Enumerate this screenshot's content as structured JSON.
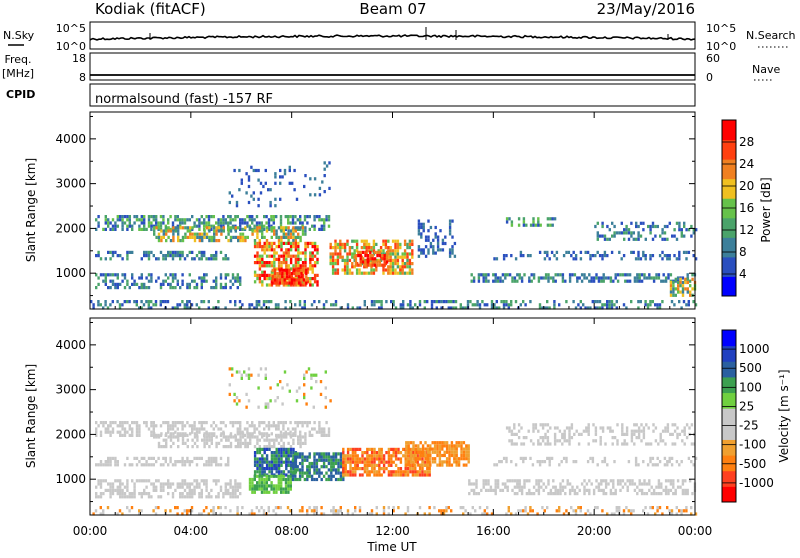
{
  "header": {
    "station": "Kodiak (fitACF)",
    "beam": "Beam 07",
    "date": "23/May/2016"
  },
  "top_panels": {
    "nsky": {
      "label": "N.Sky",
      "ticks": [
        "10^5",
        "10^0"
      ]
    },
    "nsearch": {
      "label": "N.Search",
      "ticks": [
        "10^5",
        "10^0"
      ]
    },
    "freq": {
      "label_line1": "Freq.",
      "label_line2": "[MHz]",
      "ticks": [
        "18",
        "8"
      ]
    },
    "nave": {
      "label": "Nave",
      "ticks": [
        "60",
        "0"
      ]
    },
    "cpid": {
      "label": "CPID",
      "text": "normalsound (fast) -157 RF"
    }
  },
  "colors": {
    "power": [
      "#0000ff",
      "#2a4fbf",
      "#3c7f9a",
      "#4aa36a",
      "#66c24a",
      "#f0c020",
      "#f08020",
      "#ff4010",
      "#ff0000"
    ],
    "velocity": [
      "#ff0000",
      "#ff4020",
      "#ff8010",
      "#f0a030",
      "#c8c8c8",
      "#c8c8c8",
      "#70d040",
      "#3ca050",
      "#2a60a0",
      "#2040c0",
      "#0000ff"
    ],
    "ground_scatter": "#b0b0b0"
  },
  "chart_data": [
    {
      "type": "heatmap",
      "name": "power",
      "xlabel": "",
      "ylabel": "Slant Range [km]",
      "x_ticks": [
        "00:00",
        "04:00",
        "08:00",
        "12:00",
        "16:00",
        "20:00",
        "00:00"
      ],
      "x_range_hours": [
        0,
        24
      ],
      "y_ticks": [
        1000,
        2000,
        3000,
        4000
      ],
      "y_range_km": [
        200,
        4600
      ],
      "colorbar": {
        "label": "Power [dB]",
        "ticks": [
          4,
          8,
          12,
          16,
          20,
          24,
          28
        ],
        "range": [
          0,
          32
        ]
      }
    },
    {
      "type": "heatmap",
      "name": "velocity",
      "xlabel": "Time UT",
      "ylabel": "Slant Range [km]",
      "x_ticks": [
        "00:00",
        "04:00",
        "08:00",
        "12:00",
        "16:00",
        "20:00",
        "00:00"
      ],
      "x_range_hours": [
        0,
        24
      ],
      "y_ticks": [
        1000,
        2000,
        3000,
        4000
      ],
      "y_range_km": [
        200,
        4600
      ],
      "colorbar": {
        "label": "Velocity [m s⁻¹]",
        "ticks": [
          "1000",
          "500",
          "100",
          "25",
          "-25",
          "-100",
          "-500",
          "-1000"
        ]
      }
    }
  ]
}
